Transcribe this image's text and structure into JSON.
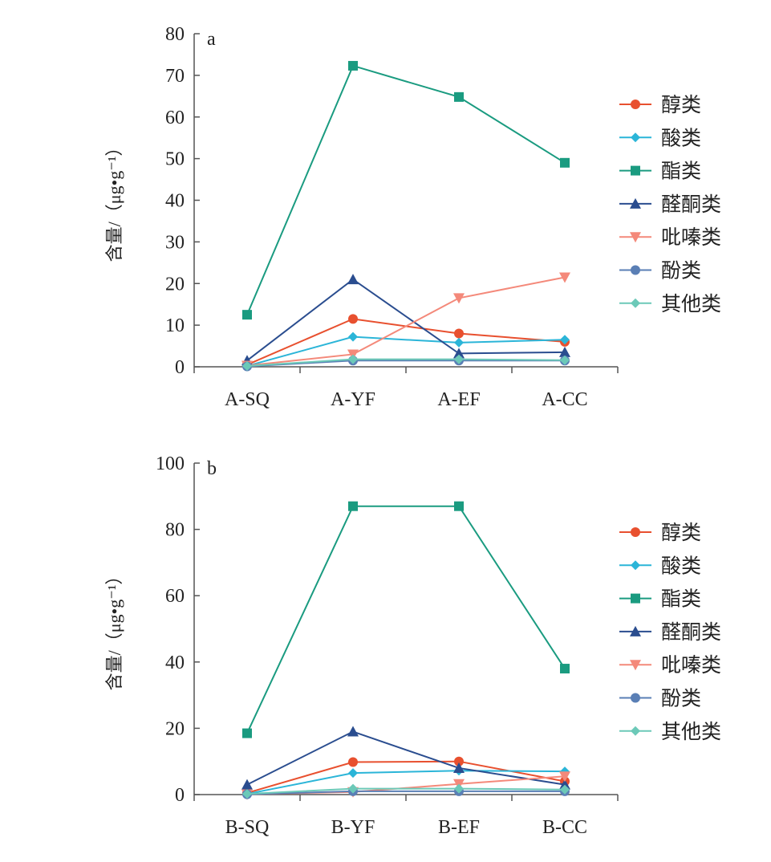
{
  "chart_data": [
    {
      "type": "line",
      "panel_label": "a",
      "ylabel": "含量/（μg•g⁻¹）",
      "ylim": [
        0,
        80
      ],
      "yticks": [
        0,
        10,
        20,
        30,
        40,
        50,
        60,
        70,
        80
      ],
      "categories": [
        "A-SQ",
        "A-YF",
        "A-EF",
        "A-CC"
      ],
      "series": [
        {
          "name": "醇类",
          "marker": "circle",
          "color": "#e8502f",
          "values": [
            0.5,
            11.5,
            8,
            6
          ]
        },
        {
          "name": "酸类",
          "marker": "diamond",
          "color": "#2bb5d8",
          "values": [
            0.2,
            7.2,
            5.8,
            6.5
          ]
        },
        {
          "name": "酯类",
          "marker": "square",
          "color": "#1a9b80",
          "values": [
            12.5,
            72.3,
            64.8,
            49
          ]
        },
        {
          "name": "醛酮类",
          "marker": "triangle-up",
          "color": "#2a4d8f",
          "values": [
            1.5,
            21,
            3.2,
            3.5
          ]
        },
        {
          "name": "吡嗪类",
          "marker": "triangle-down",
          "color": "#f4897a",
          "values": [
            0.3,
            3,
            16.5,
            21.5
          ]
        },
        {
          "name": "酚类",
          "marker": "circle",
          "color": "#5a7fb5",
          "values": [
            0.1,
            1.5,
            1.5,
            1.5
          ]
        },
        {
          "name": "其他类",
          "marker": "diamond",
          "color": "#6cc9b8",
          "values": [
            0.2,
            1.8,
            1.8,
            1.6
          ]
        }
      ]
    },
    {
      "type": "line",
      "panel_label": "b",
      "ylabel": "含量/（μg•g⁻¹）",
      "ylim": [
        0,
        100
      ],
      "yticks": [
        0,
        20,
        40,
        60,
        80,
        100
      ],
      "categories": [
        "B-SQ",
        "B-YF",
        "B-EF",
        "B-CC"
      ],
      "series": [
        {
          "name": "醇类",
          "marker": "circle",
          "color": "#e8502f",
          "values": [
            0.5,
            9.8,
            10,
            4
          ]
        },
        {
          "name": "酸类",
          "marker": "diamond",
          "color": "#2bb5d8",
          "values": [
            0.2,
            6.5,
            7.2,
            7
          ]
        },
        {
          "name": "酯类",
          "marker": "square",
          "color": "#1a9b80",
          "values": [
            18.5,
            87,
            87,
            38
          ]
        },
        {
          "name": "醛酮类",
          "marker": "triangle-up",
          "color": "#2a4d8f",
          "values": [
            3,
            19,
            8,
            3
          ]
        },
        {
          "name": "吡嗪类",
          "marker": "triangle-down",
          "color": "#f4897a",
          "values": [
            0.1,
            0.8,
            3.2,
            5.5
          ]
        },
        {
          "name": "酚类",
          "marker": "circle",
          "color": "#5a7fb5",
          "values": [
            0.1,
            1,
            1,
            1
          ]
        },
        {
          "name": "其他类",
          "marker": "diamond",
          "color": "#6cc9b8",
          "values": [
            0.2,
            1.8,
            1.8,
            1.5
          ]
        }
      ]
    }
  ]
}
